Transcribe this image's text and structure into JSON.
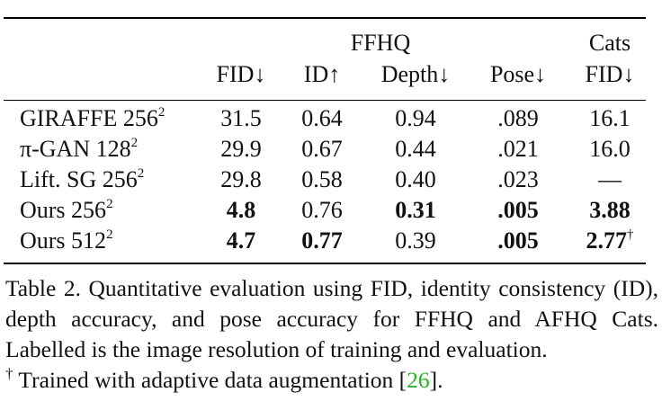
{
  "table": {
    "group_headers": {
      "ffhq": "FFHQ",
      "cats": "Cats"
    },
    "columns": [
      "FID↓",
      "ID↑",
      "Depth↓",
      "Pose↓",
      "FID↓"
    ],
    "rows": [
      {
        "method": "GIRAFFE 256",
        "res_exp": "2",
        "values": [
          "31.5",
          "0.64",
          "0.94",
          ".089",
          "16.1"
        ],
        "bold": [
          false,
          false,
          false,
          false,
          false
        ],
        "dagger": ""
      },
      {
        "method": "π-GAN 128",
        "res_exp": "2",
        "values": [
          "29.9",
          "0.67",
          "0.44",
          ".021",
          "16.0"
        ],
        "bold": [
          false,
          false,
          false,
          false,
          false
        ],
        "dagger": ""
      },
      {
        "method": "Lift. SG 256",
        "res_exp": "2",
        "values": [
          "29.8",
          "0.58",
          "0.40",
          ".023",
          "—"
        ],
        "bold": [
          false,
          false,
          false,
          false,
          false
        ],
        "dagger": ""
      },
      {
        "method": "Ours 256",
        "res_exp": "2",
        "values": [
          "4.8",
          "0.76",
          "0.31",
          ".005",
          "3.88"
        ],
        "bold": [
          true,
          false,
          true,
          true,
          true
        ],
        "dagger": ""
      },
      {
        "method": "Ours 512",
        "res_exp": "2",
        "values": [
          "4.7",
          "0.77",
          "0.39",
          ".005",
          "2.77"
        ],
        "bold": [
          true,
          true,
          false,
          true,
          true
        ],
        "dagger": "†"
      }
    ]
  },
  "caption": {
    "line1": "Table 2.  Quantitative evaluation using FID, identity consistency (ID), depth accuracy, and pose accuracy for FFHQ and AFHQ Cats. Labelled is the image resolution of training and evaluation.",
    "dagger": "†",
    "line2_pre": " Trained with adaptive data augmentation [",
    "citation": "26",
    "line2_post": "]."
  }
}
